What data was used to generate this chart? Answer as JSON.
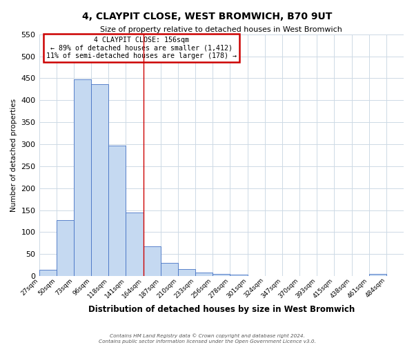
{
  "title": "4, CLAYPIT CLOSE, WEST BROMWICH, B70 9UT",
  "subtitle": "Size of property relative to detached houses in West Bromwich",
  "xlabel": "Distribution of detached houses by size in West Bromwich",
  "ylabel": "Number of detached properties",
  "bin_labels": [
    "27sqm",
    "50sqm",
    "73sqm",
    "96sqm",
    "118sqm",
    "141sqm",
    "164sqm",
    "187sqm",
    "210sqm",
    "233sqm",
    "256sqm",
    "278sqm",
    "301sqm",
    "324sqm",
    "347sqm",
    "370sqm",
    "393sqm",
    "415sqm",
    "438sqm",
    "461sqm",
    "484sqm"
  ],
  "n_bins": 21,
  "bar_values": [
    15,
    128,
    447,
    437,
    297,
    145,
    67,
    30,
    16,
    8,
    5,
    3,
    1,
    1,
    1,
    1,
    1,
    1,
    1,
    5,
    1
  ],
  "bar_color": "#c5d9f1",
  "bar_edge_color": "#4472c4",
  "property_bin": 6,
  "annotation_title": "4 CLAYPIT CLOSE: 156sqm",
  "annotation_line1": "← 89% of detached houses are smaller (1,412)",
  "annotation_line2": "11% of semi-detached houses are larger (178) →",
  "annotation_box_color": "#ffffff",
  "annotation_box_edge_color": "#cc0000",
  "ylim": [
    0,
    550
  ],
  "yticks": [
    0,
    50,
    100,
    150,
    200,
    250,
    300,
    350,
    400,
    450,
    500,
    550
  ],
  "footer_line1": "Contains HM Land Registry data © Crown copyright and database right 2024.",
  "footer_line2": "Contains public sector information licensed under the Open Government Licence v3.0.",
  "background_color": "#ffffff",
  "grid_color": "#cdd9e5"
}
